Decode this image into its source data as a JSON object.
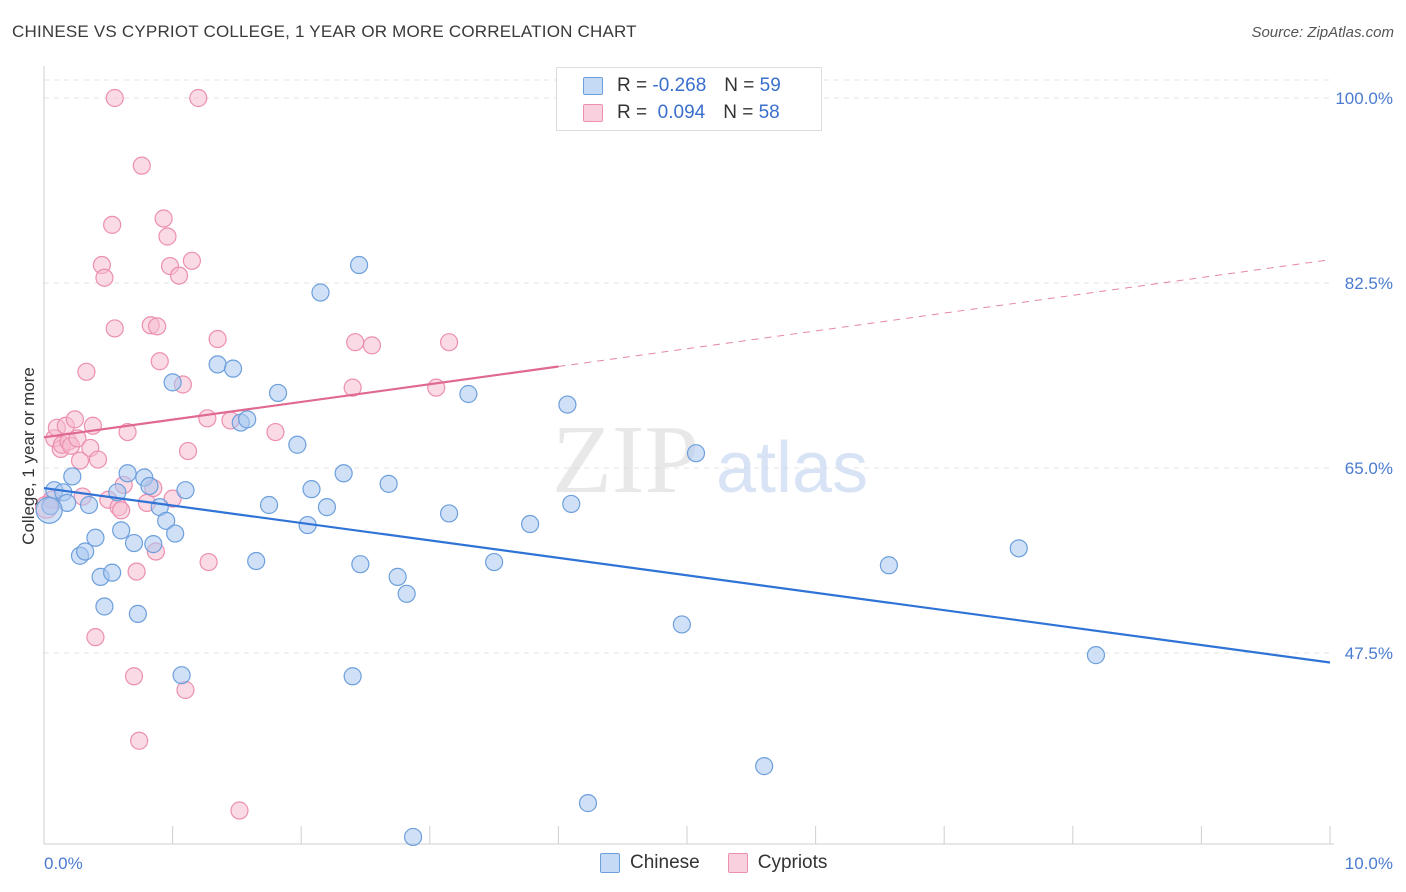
{
  "title": "CHINESE VS CYPRIOT COLLEGE, 1 YEAR OR MORE CORRELATION CHART",
  "source": "Source: ZipAtlas.com",
  "watermark": {
    "zip": "ZIP",
    "atlas": "atlas"
  },
  "legend": {
    "rows": [
      {
        "r_label": "R =",
        "r_value": "-0.268",
        "n_label": "N =",
        "n_value": "59"
      },
      {
        "r_label": "R =",
        "r_value": " 0.094",
        "n_label": "N =",
        "n_value": "58"
      }
    ]
  },
  "bottom_legend": {
    "chinese": "Chinese",
    "cypriots": "Cypriots"
  },
  "colors": {
    "chinese_fill": "#aac8f0",
    "chinese_stroke": "#6c9fdc",
    "chinese_line": "#2f73d6",
    "cypriot_fill": "#f6bcd0",
    "cypriot_stroke": "#ec8fb0",
    "cypriot_line": "#e0698f",
    "tick_text": "#4a7bd0",
    "grid": "#e3e3e3"
  },
  "chart_data": {
    "type": "scatter",
    "title": "CHINESE VS CYPRIOT COLLEGE, 1 YEAR OR MORE CORRELATION CHART",
    "xlabel": "",
    "ylabel": "College, 1 year or more",
    "xlim": [
      0,
      10
    ],
    "ylim": [
      27.5,
      102
    ],
    "x_tick_labels": [
      "0.0%",
      "10.0%"
    ],
    "y_ticks": [
      47.5,
      65.0,
      82.5,
      100.0
    ],
    "y_tick_labels": [
      "47.5%",
      "65.0%",
      "82.5%",
      "100.0%"
    ],
    "grid": true,
    "series": [
      {
        "name": "Chinese",
        "r": -0.268,
        "n": 59,
        "trend": {
          "x0": 0.0,
          "y0": 63.1,
          "x1": 10.0,
          "y1": 46.6
        },
        "points": [
          [
            0.05,
            61.4
          ],
          [
            0.08,
            62.9
          ],
          [
            0.15,
            62.7
          ],
          [
            0.18,
            61.7
          ],
          [
            0.22,
            64.2
          ],
          [
            0.28,
            56.7
          ],
          [
            0.32,
            57.1
          ],
          [
            0.35,
            61.5
          ],
          [
            0.4,
            58.4
          ],
          [
            0.44,
            54.7
          ],
          [
            0.47,
            51.9
          ],
          [
            0.53,
            55.1
          ],
          [
            0.57,
            62.7
          ],
          [
            0.6,
            59.1
          ],
          [
            0.65,
            64.5
          ],
          [
            0.7,
            57.9
          ],
          [
            0.73,
            51.2
          ],
          [
            0.78,
            64.1
          ],
          [
            0.82,
            63.3
          ],
          [
            0.85,
            57.8
          ],
          [
            0.9,
            61.3
          ],
          [
            0.95,
            60.0
          ],
          [
            1.0,
            73.1
          ],
          [
            1.02,
            58.8
          ],
          [
            1.07,
            45.4
          ],
          [
            1.1,
            62.9
          ],
          [
            1.35,
            74.8
          ],
          [
            1.47,
            74.4
          ],
          [
            1.53,
            69.3
          ],
          [
            1.58,
            69.6
          ],
          [
            1.65,
            56.2
          ],
          [
            1.75,
            61.5
          ],
          [
            1.82,
            72.1
          ],
          [
            1.97,
            67.2
          ],
          [
            2.05,
            59.6
          ],
          [
            2.08,
            63.0
          ],
          [
            2.15,
            81.6
          ],
          [
            2.2,
            61.3
          ],
          [
            2.33,
            64.5
          ],
          [
            2.4,
            45.3
          ],
          [
            2.45,
            84.2
          ],
          [
            2.46,
            55.9
          ],
          [
            2.68,
            63.5
          ],
          [
            2.75,
            54.7
          ],
          [
            2.82,
            53.1
          ],
          [
            2.87,
            30.1
          ],
          [
            3.15,
            60.7
          ],
          [
            3.3,
            72.0
          ],
          [
            3.5,
            56.1
          ],
          [
            3.78,
            59.7
          ],
          [
            4.07,
            71.0
          ],
          [
            4.1,
            61.6
          ],
          [
            4.23,
            33.3
          ],
          [
            4.96,
            50.2
          ],
          [
            5.07,
            66.4
          ],
          [
            5.6,
            36.8
          ],
          [
            6.57,
            55.8
          ],
          [
            7.58,
            57.4
          ],
          [
            8.18,
            47.3
          ]
        ]
      },
      {
        "name": "Cypriots",
        "r": 0.094,
        "n": 58,
        "trend": {
          "x0": 0.0,
          "y0": 67.9,
          "x1": 4.0,
          "y1": 74.6
        },
        "trend_dashed": {
          "x0": 4.0,
          "y0": 74.6,
          "x1": 10.0,
          "y1": 84.7
        },
        "points": [
          [
            0.06,
            62.0
          ],
          [
            0.08,
            67.8
          ],
          [
            0.1,
            68.8
          ],
          [
            0.13,
            66.8
          ],
          [
            0.14,
            67.2
          ],
          [
            0.17,
            69.0
          ],
          [
            0.19,
            67.5
          ],
          [
            0.21,
            67.1
          ],
          [
            0.24,
            69.6
          ],
          [
            0.26,
            67.8
          ],
          [
            0.28,
            65.7
          ],
          [
            0.3,
            62.3
          ],
          [
            0.33,
            74.1
          ],
          [
            0.36,
            66.9
          ],
          [
            0.38,
            69.0
          ],
          [
            0.4,
            49.0
          ],
          [
            0.42,
            65.8
          ],
          [
            0.45,
            84.2
          ],
          [
            0.47,
            83.0
          ],
          [
            0.5,
            62.0
          ],
          [
            0.53,
            88.0
          ],
          [
            0.55,
            78.2
          ],
          [
            0.58,
            61.3
          ],
          [
            0.6,
            61.0
          ],
          [
            0.62,
            63.4
          ],
          [
            0.65,
            68.4
          ],
          [
            0.7,
            45.3
          ],
          [
            0.72,
            55.2
          ],
          [
            0.74,
            39.2
          ],
          [
            0.76,
            93.6
          ],
          [
            0.8,
            61.7
          ],
          [
            0.83,
            78.5
          ],
          [
            0.85,
            63.1
          ],
          [
            0.87,
            57.1
          ],
          [
            0.88,
            78.4
          ],
          [
            0.9,
            75.1
          ],
          [
            0.93,
            88.6
          ],
          [
            0.96,
            86.9
          ],
          [
            0.98,
            84.1
          ],
          [
            1.0,
            62.1
          ],
          [
            1.05,
            83.2
          ],
          [
            1.08,
            72.9
          ],
          [
            1.1,
            44.0
          ],
          [
            1.12,
            66.6
          ],
          [
            1.15,
            84.6
          ],
          [
            1.2,
            100.0
          ],
          [
            1.27,
            69.7
          ],
          [
            1.28,
            56.1
          ],
          [
            1.35,
            77.2
          ],
          [
            1.45,
            69.5
          ],
          [
            1.52,
            32.6
          ],
          [
            1.8,
            68.4
          ],
          [
            2.4,
            72.6
          ],
          [
            2.42,
            76.9
          ],
          [
            2.55,
            76.6
          ],
          [
            0.55,
            100.0
          ],
          [
            3.05,
            72.6
          ],
          [
            3.15,
            76.9
          ]
        ]
      }
    ]
  }
}
